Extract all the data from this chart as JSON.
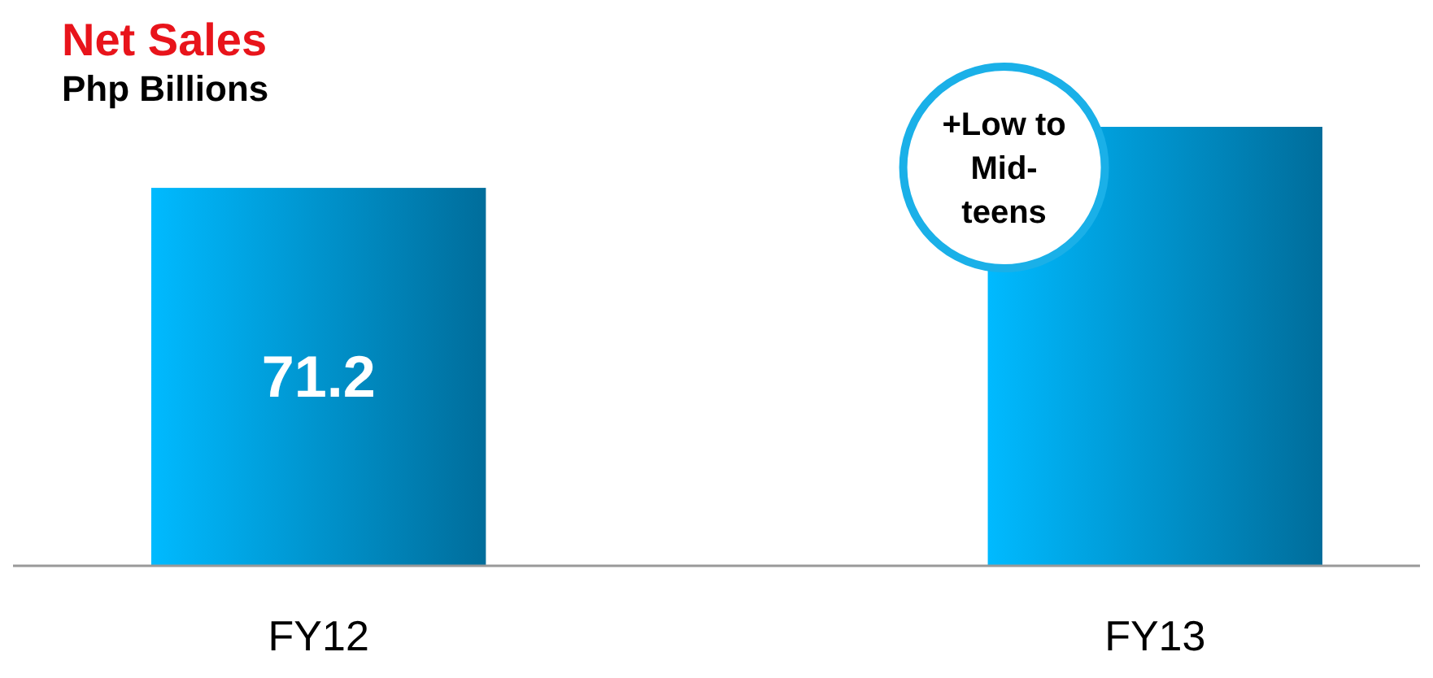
{
  "chart_data": {
    "type": "bar",
    "title": "Net Sales",
    "subtitle": "Php Billions",
    "categories": [
      "FY12",
      "FY13"
    ],
    "values": [
      71.2,
      82.7
    ],
    "value_labels": [
      "71.2",
      null
    ],
    "color": "#0096d6",
    "annotations": [
      "+Low to Mid-teens"
    ]
  }
}
